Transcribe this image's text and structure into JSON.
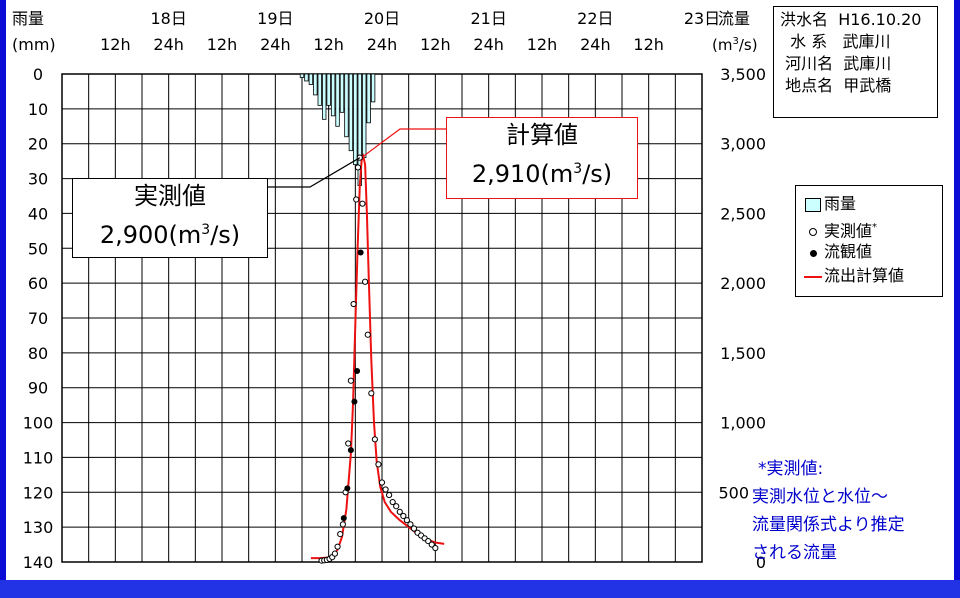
{
  "chart_data": {
    "type": "line",
    "left_axis_title": "雨量",
    "left_axis_unit": "(mm)",
    "right_axis_title": "流量",
    "right_axis_unit_base": "(m",
    "right_axis_unit_sup": "3",
    "right_axis_unit_tail": "/s)",
    "rain_ticks": [
      "0",
      "10",
      "20",
      "30",
      "40",
      "50",
      "60",
      "70",
      "80",
      "90",
      "100",
      "110",
      "120",
      "130",
      "140"
    ],
    "flow_ticks": [
      {
        "value": 3500,
        "label": "3,500"
      },
      {
        "value": 3000,
        "label": "3,000"
      },
      {
        "value": 2500,
        "label": "2,500"
      },
      {
        "value": 2000,
        "label": "2,000"
      },
      {
        "value": 1500,
        "label": "1,500"
      },
      {
        "value": 1000,
        "label": "1,000"
      },
      {
        "value": 500,
        "label": "500"
      },
      {
        "value": 0,
        "label": "0"
      }
    ],
    "rain_range": [
      0,
      140
    ],
    "flow_range": [
      0,
      3500
    ],
    "time_range_hours": [
      0,
      144
    ],
    "day_labels": [
      {
        "hour": 24,
        "label": "18日"
      },
      {
        "hour": 48,
        "label": "19日"
      },
      {
        "hour": 72,
        "label": "20日"
      },
      {
        "hour": 96,
        "label": "21日"
      },
      {
        "hour": 120,
        "label": "22日"
      },
      {
        "hour": 144,
        "label": "23日"
      }
    ],
    "hour_labels": [
      {
        "hour": 12,
        "label": "12h"
      },
      {
        "hour": 24,
        "label": "24h"
      },
      {
        "hour": 36,
        "label": "12h"
      },
      {
        "hour": 48,
        "label": "24h"
      },
      {
        "hour": 60,
        "label": "12h"
      },
      {
        "hour": 72,
        "label": "24h"
      },
      {
        "hour": 84,
        "label": "12h"
      },
      {
        "hour": 96,
        "label": "24h"
      },
      {
        "hour": 108,
        "label": "12h"
      },
      {
        "hour": 120,
        "label": "24h"
      },
      {
        "hour": 132,
        "label": "12h"
      }
    ],
    "rainfall": {
      "name": "雨量",
      "color": "#ccffff",
      "hours": [
        54,
        55,
        56,
        57,
        58,
        59,
        60,
        61,
        62,
        63,
        64,
        65,
        66,
        67,
        68,
        69,
        70
      ],
      "values": [
        1,
        2,
        3,
        6,
        9,
        13,
        9,
        12,
        15,
        11,
        18,
        22,
        26,
        32,
        24,
        14,
        8
      ]
    },
    "observed": {
      "name": "実測値",
      "legend_mark": "*",
      "points": [
        [
          58.4,
          10
        ],
        [
          59.0,
          12
        ],
        [
          59.6,
          15
        ],
        [
          60.2,
          22
        ],
        [
          60.8,
          35
        ],
        [
          61.4,
          60
        ],
        [
          62.0,
          110
        ],
        [
          62.6,
          200
        ],
        [
          63.2,
          270
        ],
        [
          63.8,
          500
        ],
        [
          64.4,
          850
        ],
        [
          65.0,
          1300
        ],
        [
          65.6,
          1850
        ],
        [
          66.2,
          2600
        ],
        [
          66.6,
          2830
        ],
        [
          67.0,
          2900
        ],
        [
          67.6,
          2570
        ],
        [
          68.2,
          2010
        ],
        [
          68.8,
          1630
        ],
        [
          69.6,
          1210
        ],
        [
          70.4,
          880
        ],
        [
          71.2,
          700
        ],
        [
          72.0,
          570
        ],
        [
          72.8,
          520
        ],
        [
          73.6,
          480
        ],
        [
          74.4,
          430
        ],
        [
          75.2,
          400
        ],
        [
          76.0,
          360
        ],
        [
          76.8,
          330
        ],
        [
          77.6,
          300
        ],
        [
          78.4,
          270
        ],
        [
          79.2,
          240
        ],
        [
          80.0,
          210
        ],
        [
          80.8,
          190
        ],
        [
          81.6,
          170
        ],
        [
          82.4,
          150
        ],
        [
          83.2,
          125
        ],
        [
          84.0,
          100
        ]
      ]
    },
    "gauged": {
      "name": "流観値",
      "points": [
        [
          63.4,
          315
        ],
        [
          64.2,
          528
        ],
        [
          65.0,
          802
        ],
        [
          65.8,
          1150
        ],
        [
          66.4,
          1370
        ],
        [
          67.2,
          2220
        ]
      ]
    },
    "calculated": {
      "name": "流出計算値",
      "color": "#ee1111",
      "points": [
        [
          56,
          28
        ],
        [
          58,
          28
        ],
        [
          60,
          32
        ],
        [
          61,
          45
        ],
        [
          62,
          90
        ],
        [
          63,
          180
        ],
        [
          64,
          380
        ],
        [
          65,
          780
        ],
        [
          65.5,
          1150
        ],
        [
          66,
          1700
        ],
        [
          66.5,
          2250
        ],
        [
          67,
          2700
        ],
        [
          67.4,
          2880
        ],
        [
          67.8,
          2910
        ],
        [
          68.2,
          2850
        ],
        [
          68.6,
          2500
        ],
        [
          69,
          2050
        ],
        [
          69.6,
          1450
        ],
        [
          70.2,
          1000
        ],
        [
          70.8,
          720
        ],
        [
          71.6,
          540
        ],
        [
          72.6,
          430
        ],
        [
          74,
          360
        ],
        [
          76,
          300
        ],
        [
          78,
          250
        ],
        [
          80,
          200
        ],
        [
          82,
          165
        ],
        [
          84,
          140
        ],
        [
          86,
          130
        ]
      ]
    },
    "callouts": {
      "observed_title": "実測値",
      "observed_value": "2,900(m",
      "observed_sup": "3",
      "observed_tail": "/s)",
      "calc_title": "計算値",
      "calc_value": "2,910(m",
      "calc_sup": "3",
      "calc_tail": "/s)",
      "observed_peak": {
        "hour": 67.0,
        "flow": 2900
      },
      "calc_peak": {
        "hour": 67.8,
        "flow": 2910
      }
    }
  },
  "info": {
    "flood_label": "洪水名",
    "flood_value": "H16.10.20",
    "system_label": "水 系",
    "system_value": "武庫川",
    "river_label": "河川名",
    "river_value": "武庫川",
    "point_label": "地点名",
    "point_value": "甲武橋"
  },
  "legend": {
    "rain": "雨量",
    "observed": "実測値",
    "observed_mark": "*",
    "gauged": "流観値",
    "calculated": "流出計算値"
  },
  "note": {
    "line1": "*実測値:",
    "line2": "実測水位と水位～",
    "line3": "流量関係式より推定",
    "line4": "される流量"
  },
  "colors": {
    "frame": "#0b0bd6",
    "bottom_band": "#2233e6",
    "calc_line": "#ee1111",
    "rain_fill": "#ccffff",
    "note_text": "#0000cc"
  }
}
